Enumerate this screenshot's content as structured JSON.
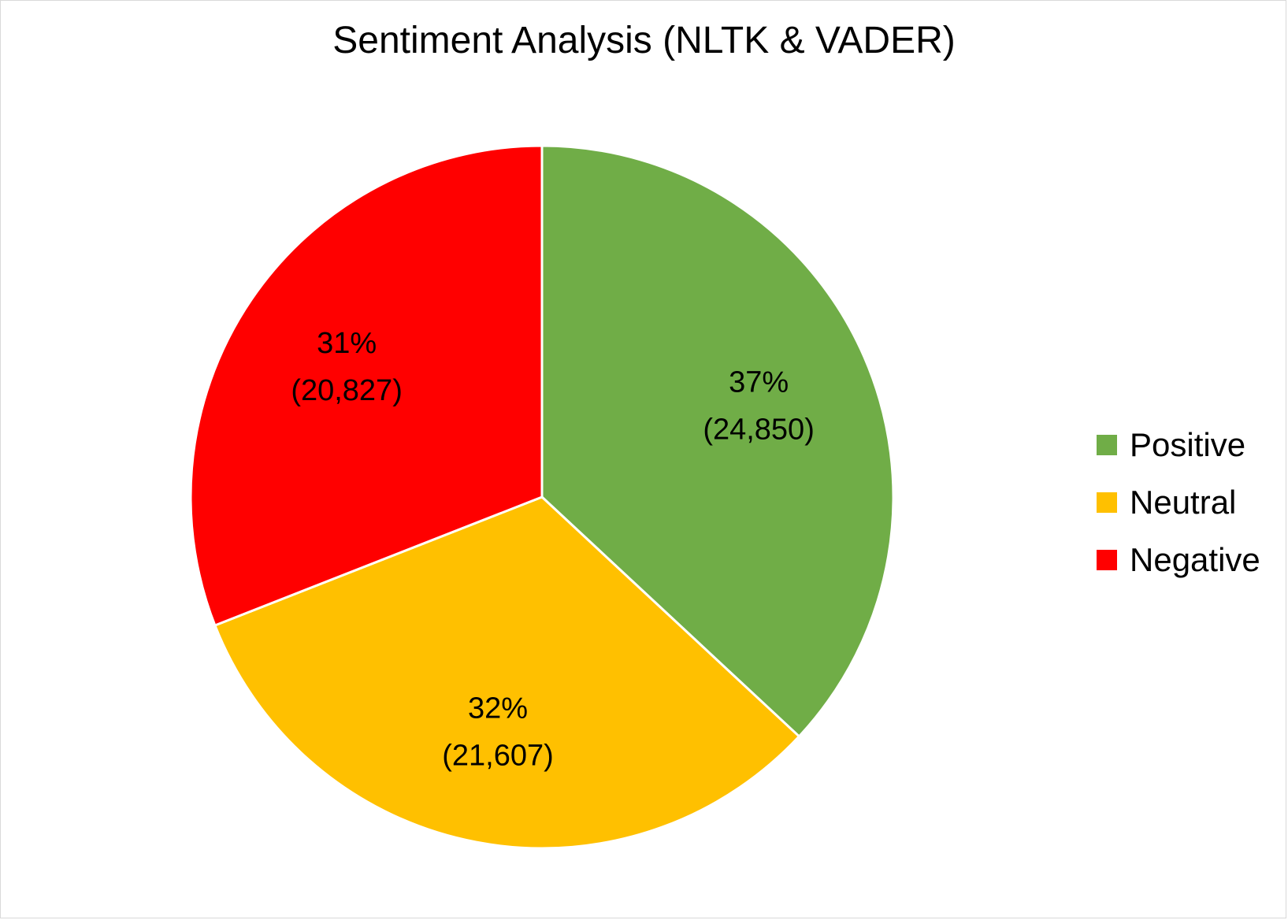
{
  "chart_data": {
    "type": "pie",
    "title": "Sentiment Analysis (NLTK & VADER)",
    "categories": [
      "Positive",
      "Neutral",
      "Negative"
    ],
    "values": [
      24850,
      21607,
      20827
    ],
    "percent_labels": [
      "37%",
      "32%",
      "31%"
    ],
    "count_labels": [
      "(24,850)",
      "(21,607)",
      "(20,827)"
    ],
    "colors": [
      "#70ad47",
      "#ffc000",
      "#ff0000"
    ],
    "start_angle_deg": 0,
    "direction": "clockwise",
    "legend": "right",
    "slice_border_color": "#ffffff"
  }
}
